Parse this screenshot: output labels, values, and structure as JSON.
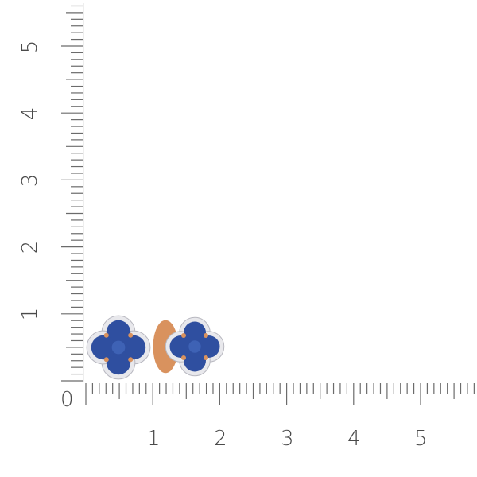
{
  "ruler": {
    "unit_labels_x": [
      "0",
      "1",
      "2",
      "3",
      "4",
      "5"
    ],
    "unit_labels_y": [
      "1",
      "2",
      "3",
      "4",
      "5"
    ],
    "tick_color": "#6b6b6b"
  },
  "product": {
    "stone_color": "#2f4fa0",
    "metal_color": "#d9925e",
    "diamond_color": "#e8e8ec"
  }
}
